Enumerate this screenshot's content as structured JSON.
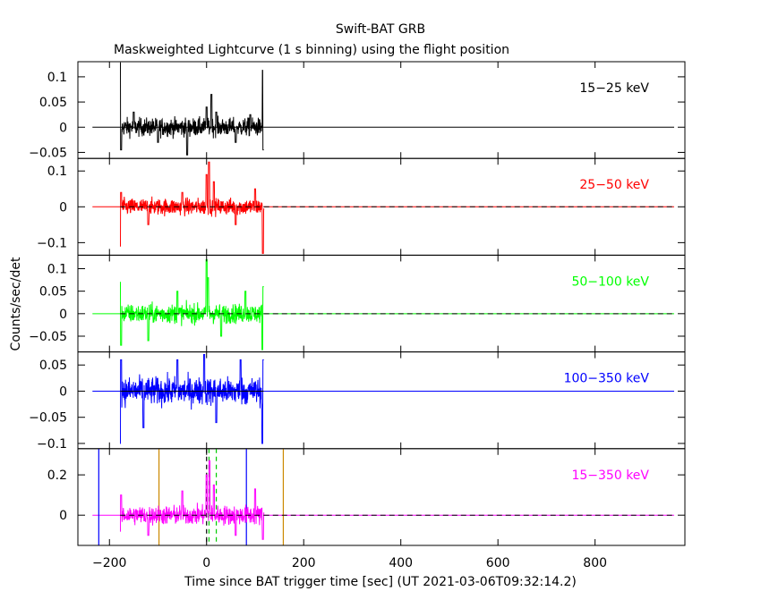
{
  "chart_data": {
    "type": "line",
    "title": "Swift-BAT GRB",
    "subtitle": "Maskweighted Lightcurve (1 s binning) using the flight position",
    "xlabel": "Time since BAT trigger time [sec] (UT 2021-03-06T09:32:14.2)",
    "ylabel": "Counts/sec/det",
    "xlim": [
      -265,
      985
    ],
    "xticks": [
      -200,
      0,
      200,
      400,
      600,
      800
    ],
    "xticklabels": [
      "−200",
      "0",
      "200",
      "400",
      "600",
      "800"
    ],
    "data_span": [
      -178,
      118
    ],
    "panels": [
      {
        "label": "15−25 keV",
        "color": "#000000",
        "ylim": [
          -0.062,
          0.13
        ],
        "yticks": [
          -0.05,
          0,
          0.05,
          0.1
        ],
        "yticklabels": [
          "−0.05",
          "0",
          "0.05",
          "0.1"
        ],
        "noise": 0.017,
        "zero_line": "solid",
        "series": [
          {
            "x": -178,
            "y": 0.128
          },
          {
            "x": -176,
            "y": -0.045
          },
          {
            "x": -150,
            "y": 0.03
          },
          {
            "x": -100,
            "y": -0.03
          },
          {
            "x": -40,
            "y": -0.055
          },
          {
            "x": 0,
            "y": 0.04
          },
          {
            "x": 10,
            "y": 0.065
          },
          {
            "x": 20,
            "y": 0.03
          },
          {
            "x": 60,
            "y": -0.03
          },
          {
            "x": 90,
            "y": 0.025
          },
          {
            "x": 116,
            "y": 0.113
          },
          {
            "x": 117,
            "y": -0.045
          }
        ]
      },
      {
        "label": "25−50 keV",
        "color": "#ff0000",
        "ylim": [
          -0.135,
          0.135
        ],
        "yticks": [
          -0.1,
          0,
          0.1
        ],
        "yticklabels": [
          "−0.1",
          "0",
          "0.1"
        ],
        "noise": 0.022,
        "zero_line": "dashed",
        "series": [
          {
            "x": -178,
            "y": -0.11
          },
          {
            "x": -176,
            "y": 0.04
          },
          {
            "x": -120,
            "y": -0.05
          },
          {
            "x": -50,
            "y": 0.04
          },
          {
            "x": 0,
            "y": 0.09
          },
          {
            "x": 5,
            "y": 0.125
          },
          {
            "x": 15,
            "y": 0.07
          },
          {
            "x": 60,
            "y": -0.05
          },
          {
            "x": 100,
            "y": 0.05
          },
          {
            "x": 116,
            "y": -0.13
          }
        ]
      },
      {
        "label": "50−100 keV",
        "color": "#00ff00",
        "ylim": [
          -0.085,
          0.13
        ],
        "yticks": [
          -0.05,
          0,
          0.05,
          0.1
        ],
        "yticklabels": [
          "−0.05",
          "0",
          "0.05",
          "0.1"
        ],
        "noise": 0.02,
        "zero_line": "dashed",
        "series": [
          {
            "x": -178,
            "y": 0.07
          },
          {
            "x": -176,
            "y": -0.07
          },
          {
            "x": -120,
            "y": -0.06
          },
          {
            "x": -60,
            "y": 0.05
          },
          {
            "x": 0,
            "y": 0.12
          },
          {
            "x": 3,
            "y": 0.08
          },
          {
            "x": 30,
            "y": -0.05
          },
          {
            "x": 80,
            "y": 0.05
          },
          {
            "x": 115,
            "y": -0.08
          },
          {
            "x": 117,
            "y": 0.06
          }
        ]
      },
      {
        "label": "100−350 keV",
        "color": "#0000ff",
        "ylim": [
          -0.11,
          0.075
        ],
        "yticks": [
          -0.1,
          -0.05,
          0,
          0.05
        ],
        "yticklabels": [
          "−0.1",
          "−0.05",
          "0",
          "0.05"
        ],
        "noise": 0.025,
        "zero_line": "solid",
        "series": [
          {
            "x": -178,
            "y": -0.1
          },
          {
            "x": -176,
            "y": 0.06
          },
          {
            "x": -130,
            "y": -0.07
          },
          {
            "x": -60,
            "y": 0.06
          },
          {
            "x": -5,
            "y": 0.07
          },
          {
            "x": 20,
            "y": -0.06
          },
          {
            "x": 70,
            "y": 0.06
          },
          {
            "x": 115,
            "y": -0.1
          },
          {
            "x": 117,
            "y": 0.06
          }
        ]
      },
      {
        "label": "15−350 keV",
        "color": "#ff00ff",
        "ylim": [
          -0.15,
          0.33
        ],
        "yticks": [
          0,
          0.2
        ],
        "yticklabels": [
          "0",
          "0.2"
        ],
        "noise": 0.045,
        "zero_line": "dashed",
        "series": [
          {
            "x": -178,
            "y": -0.08
          },
          {
            "x": -176,
            "y": 0.1
          },
          {
            "x": -120,
            "y": -0.1
          },
          {
            "x": -50,
            "y": 0.12
          },
          {
            "x": 0,
            "y": 0.2
          },
          {
            "x": 6,
            "y": 0.27
          },
          {
            "x": 15,
            "y": 0.15
          },
          {
            "x": 60,
            "y": -0.1
          },
          {
            "x": 100,
            "y": 0.13
          },
          {
            "x": 116,
            "y": -0.12
          }
        ],
        "vlines": [
          {
            "x": -222,
            "color": "#0000ff",
            "style": "solid"
          },
          {
            "x": -98,
            "color": "#cc8800",
            "style": "solid"
          },
          {
            "x": 0,
            "color": "#000000",
            "style": "dashed"
          },
          {
            "x": 5,
            "color": "#00cc00",
            "style": "dashed"
          },
          {
            "x": 20,
            "color": "#00cc00",
            "style": "dashed"
          },
          {
            "x": 82,
            "color": "#0000ff",
            "style": "solid"
          },
          {
            "x": 158,
            "color": "#cc8800",
            "style": "solid"
          }
        ]
      }
    ]
  }
}
